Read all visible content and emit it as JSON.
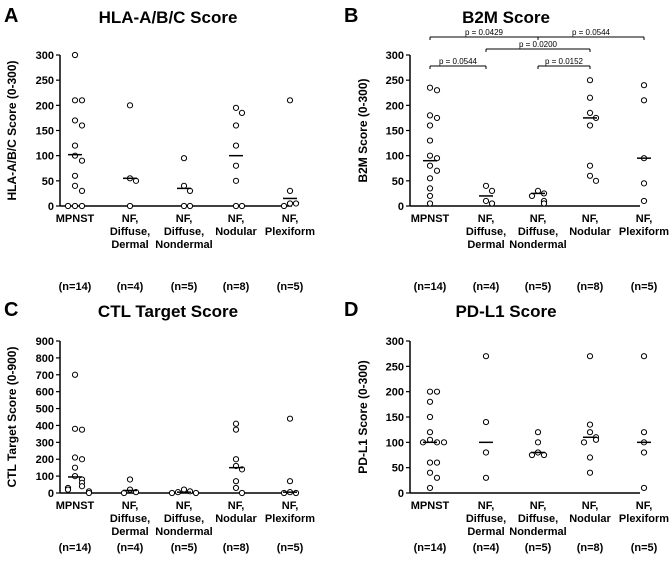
{
  "chart_data": [
    {
      "type": "scatter",
      "panel": "A",
      "title": "HLA-A/B/C Score",
      "ylabel": "HLA-A/B/C Score (0-300)",
      "ylim": [
        0,
        300
      ],
      "yticks": [
        0,
        50,
        100,
        150,
        200,
        250,
        300
      ],
      "categories": [
        {
          "lines": [
            "MPNST"
          ],
          "n": "(n=14)"
        },
        {
          "lines": [
            "NF,",
            "Diffuse,",
            "Dermal"
          ],
          "n": "(n=4)"
        },
        {
          "lines": [
            "NF,",
            "Diffuse,",
            "Nondermal"
          ],
          "n": "(n=5)"
        },
        {
          "lines": [
            "NF,",
            "Nodular"
          ],
          "n": "(n=8)"
        },
        {
          "lines": [
            "NF,",
            "Plexiform"
          ],
          "n": "(n=5)"
        }
      ],
      "points": [
        [
          300,
          210,
          210,
          170,
          160,
          120,
          100,
          90,
          60,
          40,
          30,
          0,
          0,
          0
        ],
        [
          200,
          55,
          50,
          0
        ],
        [
          95,
          40,
          30,
          0,
          0
        ],
        [
          195,
          185,
          160,
          120,
          80,
          50,
          0,
          0
        ],
        [
          210,
          30,
          5,
          5,
          0
        ]
      ],
      "medians": [
        102,
        55,
        35,
        100,
        15
      ],
      "significance": []
    },
    {
      "type": "scatter",
      "panel": "B",
      "title": "B2M Score",
      "ylabel": "B2M Score (0-300)",
      "ylim": [
        0,
        300
      ],
      "yticks": [
        0,
        50,
        100,
        150,
        200,
        250,
        300
      ],
      "categories": [
        {
          "lines": [
            "MPNST"
          ],
          "n": "(n=14)"
        },
        {
          "lines": [
            "NF,",
            "Diffuse,",
            "Dermal"
          ],
          "n": "(n=4)"
        },
        {
          "lines": [
            "NF,",
            "Diffuse,",
            "Nondermal"
          ],
          "n": "(n=5)"
        },
        {
          "lines": [
            "NF,",
            "Nodular"
          ],
          "n": "(n=8)"
        },
        {
          "lines": [
            "NF,",
            "Plexiform"
          ],
          "n": "(n=5)"
        }
      ],
      "points": [
        [
          235,
          230,
          180,
          175,
          160,
          130,
          100,
          95,
          80,
          70,
          55,
          35,
          20,
          5
        ],
        [
          40,
          30,
          10,
          5
        ],
        [
          30,
          25,
          20,
          10,
          5
        ],
        [
          250,
          215,
          185,
          175,
          160,
          80,
          60,
          50
        ],
        [
          240,
          210,
          95,
          45,
          10
        ]
      ],
      "medians": [
        90,
        20,
        25,
        175,
        95
      ],
      "significance": [
        {
          "from": 0,
          "to": 2,
          "label": "p = 0.0429"
        },
        {
          "from": 1,
          "to": 3,
          "label": "p = 0.0200"
        },
        {
          "from": 2,
          "to": 4,
          "label": "p = 0.0544"
        },
        {
          "from": 0,
          "to": 1,
          "label": "p = 0.0544"
        },
        {
          "from": 2,
          "to": 3,
          "label": "p = 0.0152"
        }
      ]
    },
    {
      "type": "scatter",
      "panel": "C",
      "title": "CTL Target Score",
      "ylabel": "CTL Target  Score (0-900)",
      "ylim": [
        0,
        900
      ],
      "yticks": [
        0,
        100,
        200,
        300,
        400,
        500,
        600,
        700,
        800,
        900
      ],
      "categories": [
        {
          "lines": [
            "MPNST"
          ],
          "n": "(n=14)"
        },
        {
          "lines": [
            "NF,",
            "Diffuse,",
            "Dermal"
          ],
          "n": "(n=4)"
        },
        {
          "lines": [
            "NF,",
            "Diffuse,",
            "Nondermal"
          ],
          "n": "(n=5)"
        },
        {
          "lines": [
            "NF,",
            "Nodular"
          ],
          "n": "(n=8)"
        },
        {
          "lines": [
            "NF,",
            "Plexiform"
          ],
          "n": "(n=5)"
        }
      ],
      "points": [
        [
          700,
          380,
          375,
          210,
          200,
          150,
          100,
          80,
          60,
          40,
          30,
          20,
          10,
          0
        ],
        [
          80,
          20,
          5,
          0
        ],
        [
          20,
          10,
          5,
          0,
          0
        ],
        [
          410,
          375,
          200,
          160,
          140,
          70,
          30,
          0
        ],
        [
          440,
          70,
          5,
          0,
          0
        ]
      ],
      "medians": [
        95,
        15,
        5,
        150,
        5
      ],
      "significance": []
    },
    {
      "type": "scatter",
      "panel": "D",
      "title": "PD-L1 Score",
      "ylabel": "PD-L1 Score (0-300)",
      "ylim": [
        0,
        300
      ],
      "yticks": [
        0,
        50,
        100,
        150,
        200,
        250,
        300
      ],
      "categories": [
        {
          "lines": [
            "MPNST"
          ],
          "n": "(n=14)"
        },
        {
          "lines": [
            "NF,",
            "Diffuse,",
            "Dermal"
          ],
          "n": "(n=4)"
        },
        {
          "lines": [
            "NF,",
            "Diffuse,",
            "Nondermal"
          ],
          "n": "(n=5)"
        },
        {
          "lines": [
            "NF,",
            "Nodular"
          ],
          "n": "(n=8)"
        },
        {
          "lines": [
            "NF,",
            "Plexiform"
          ],
          "n": "(n=5)"
        }
      ],
      "points": [
        [
          200,
          200,
          180,
          150,
          120,
          105,
          100,
          100,
          100,
          60,
          60,
          40,
          30,
          10
        ],
        [
          270,
          140,
          80,
          30
        ],
        [
          120,
          100,
          80,
          75,
          75
        ],
        [
          270,
          135,
          120,
          110,
          105,
          100,
          70,
          40
        ],
        [
          270,
          120,
          100,
          80,
          10
        ]
      ],
      "medians": [
        100,
        100,
        80,
        110,
        100
      ],
      "significance": []
    }
  ]
}
